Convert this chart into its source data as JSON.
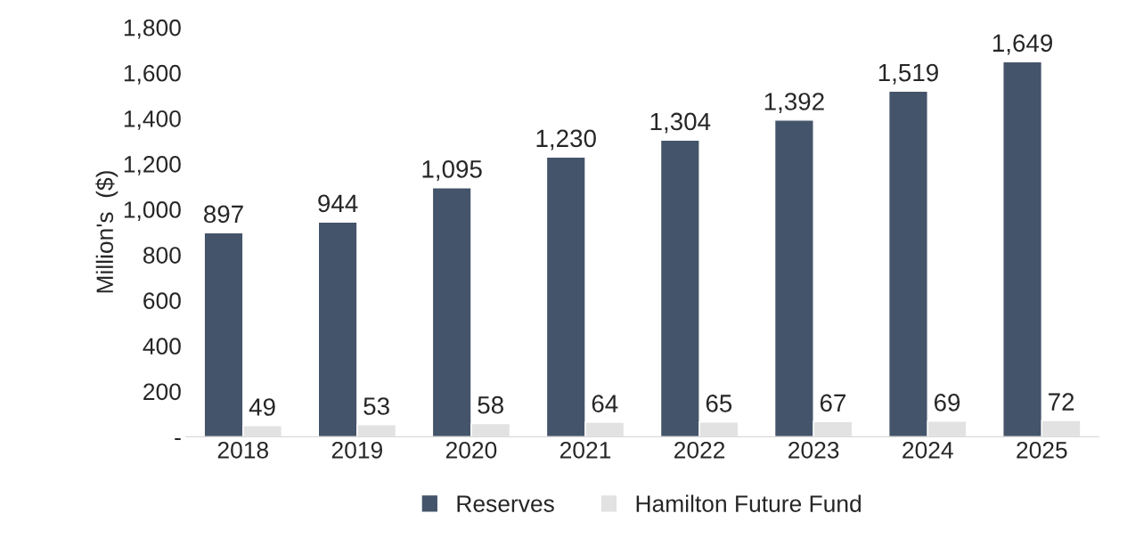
{
  "chart_data": {
    "type": "bar",
    "ylabel": "Million's  ($)",
    "categories": [
      "2018",
      "2019",
      "2020",
      "2021",
      "2022",
      "2023",
      "2024",
      "2025"
    ],
    "series": [
      {
        "name": "Reserves",
        "color": "#44546a",
        "values": [
          897,
          944,
          1095,
          1230,
          1304,
          1392,
          1519,
          1649
        ],
        "value_labels": [
          "897",
          "944",
          "1,095",
          "1,230",
          "1,304",
          "1,392",
          "1,519",
          "1,649"
        ]
      },
      {
        "name": "Hamilton Future Fund",
        "color": "#e2e2e2",
        "values": [
          49,
          53,
          58,
          64,
          65,
          67,
          69,
          72
        ],
        "value_labels": [
          "49",
          "53",
          "58",
          "64",
          "65",
          "67",
          "69",
          "72"
        ]
      }
    ],
    "ylim": [
      0,
      1800
    ],
    "yticks": [
      {
        "value": 0,
        "label": "-"
      },
      {
        "value": 200,
        "label": "200"
      },
      {
        "value": 400,
        "label": "400"
      },
      {
        "value": 600,
        "label": "600"
      },
      {
        "value": 800,
        "label": "800"
      },
      {
        "value": 1000,
        "label": "1,000"
      },
      {
        "value": 1200,
        "label": "1,200"
      },
      {
        "value": 1400,
        "label": "1,400"
      },
      {
        "value": 1600,
        "label": "1,600"
      },
      {
        "value": 1800,
        "label": "1,800"
      }
    ],
    "grid": false,
    "legend": "bottom"
  }
}
